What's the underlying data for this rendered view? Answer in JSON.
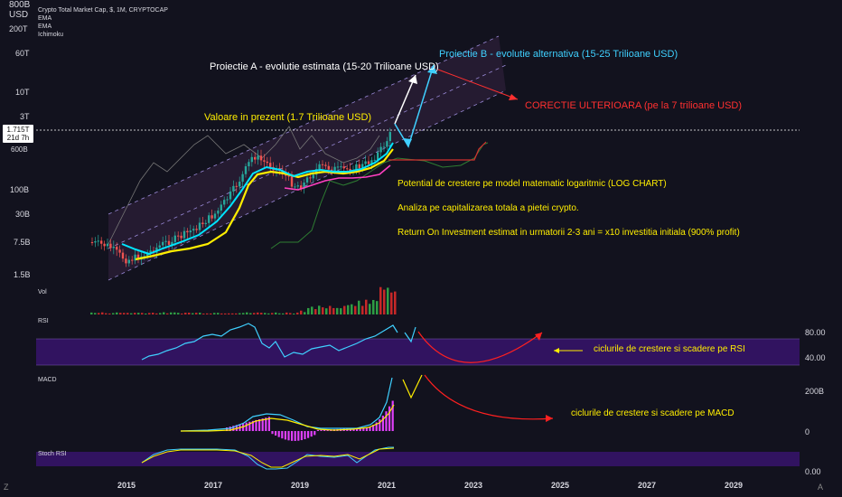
{
  "header": {
    "currency_top": "800B",
    "currency_bottom": "USD",
    "symbol": "Crypto Total Market Cap, $, 1M, CRYPTOCAP",
    "indicators": [
      "EMA",
      "EMA",
      "Ichimoku"
    ]
  },
  "badge": {
    "price": "1.715T",
    "countdown": "21d 7h"
  },
  "price_axis": [
    "200T",
    "60T",
    "10T",
    "3T",
    "600B",
    "100B",
    "30B",
    "7.5B",
    "1.5B"
  ],
  "panes": {
    "vol": "Vol",
    "rsi": "RSI",
    "macd": "MACD",
    "stoch": "Stoch RSI"
  },
  "rsi_axis": [
    "80.00",
    "40.00"
  ],
  "macd_axis": [
    "200B",
    "0"
  ],
  "stoch_axis": [
    "0.00"
  ],
  "time_axis": [
    "2015",
    "2017",
    "2019",
    "2021",
    "2023",
    "2025",
    "2027",
    "2029"
  ],
  "annotations": {
    "proj_a": "Proiectie A - evolutie estimata (15-20 Trilioane USD)",
    "proj_b": "Proiectie B - evolutie alternativa (15-25 Trilioane USD)",
    "correction": "CORECTIE ULTERIOARA (pe la 7 trilioane USD)",
    "current": "Valoare in prezent (1.7 Trilioane USD)",
    "line1": "Potential de crestere pe model matematic logaritmic (LOG CHART)",
    "line2": "Analiza pe capitalizarea totala a pietei crypto.",
    "line3": "Return On Investment estimat in urmatorii 2-3 ani = x10 investitia initiala (900% profit)",
    "rsi_note": "ciclurile de crestere si scadere pe RSI",
    "macd_note": "ciclurile de crestere si scadere pe MACD"
  },
  "corner_left": "Z",
  "corner_right": "A",
  "colors": {
    "bg": "#12121e",
    "up": "#26a69a",
    "down": "#ef5350",
    "ema_fast": "#00e5ff",
    "ema_slow": "#ffee00",
    "channel": "#7a6ad8",
    "correction": "#ff3030",
    "proj_b": "#3fd0ff",
    "rsi": "#3fd0ff",
    "macd_hist": "#e040fb"
  },
  "chart_data": {
    "type": "line",
    "title": "Crypto Total Market Cap, $, 1M, CRYPTOCAP",
    "scale": "log",
    "x_range": [
      "2014",
      "2030"
    ],
    "y_range": [
      "1.5B",
      "200T"
    ],
    "series": [
      {
        "name": "Crypto Total Market Cap",
        "x": [
          "2014.5",
          "2015.0",
          "2015.5",
          "2016.0",
          "2016.5",
          "2017.0",
          "2017.5",
          "2018.0",
          "2018.5",
          "2019.0",
          "2019.5",
          "2020.0",
          "2020.5",
          "2021.0",
          "2021.3"
        ],
        "y_usd_billions": [
          12,
          4,
          3.5,
          7,
          12,
          20,
          90,
          800,
          300,
          120,
          300,
          250,
          300,
          900,
          1715
        ]
      }
    ],
    "projections": [
      {
        "name": "Proiectie A",
        "target_trillions": [
          15,
          20
        ]
      },
      {
        "name": "Proiectie B",
        "target_trillions": [
          15,
          25
        ]
      },
      {
        "name": "CORECTIE ULTERIOARA",
        "target_trillions": 7
      }
    ],
    "current_value_trillions": 1.715,
    "rsi_levels": [
      80,
      40
    ],
    "grid": false
  }
}
